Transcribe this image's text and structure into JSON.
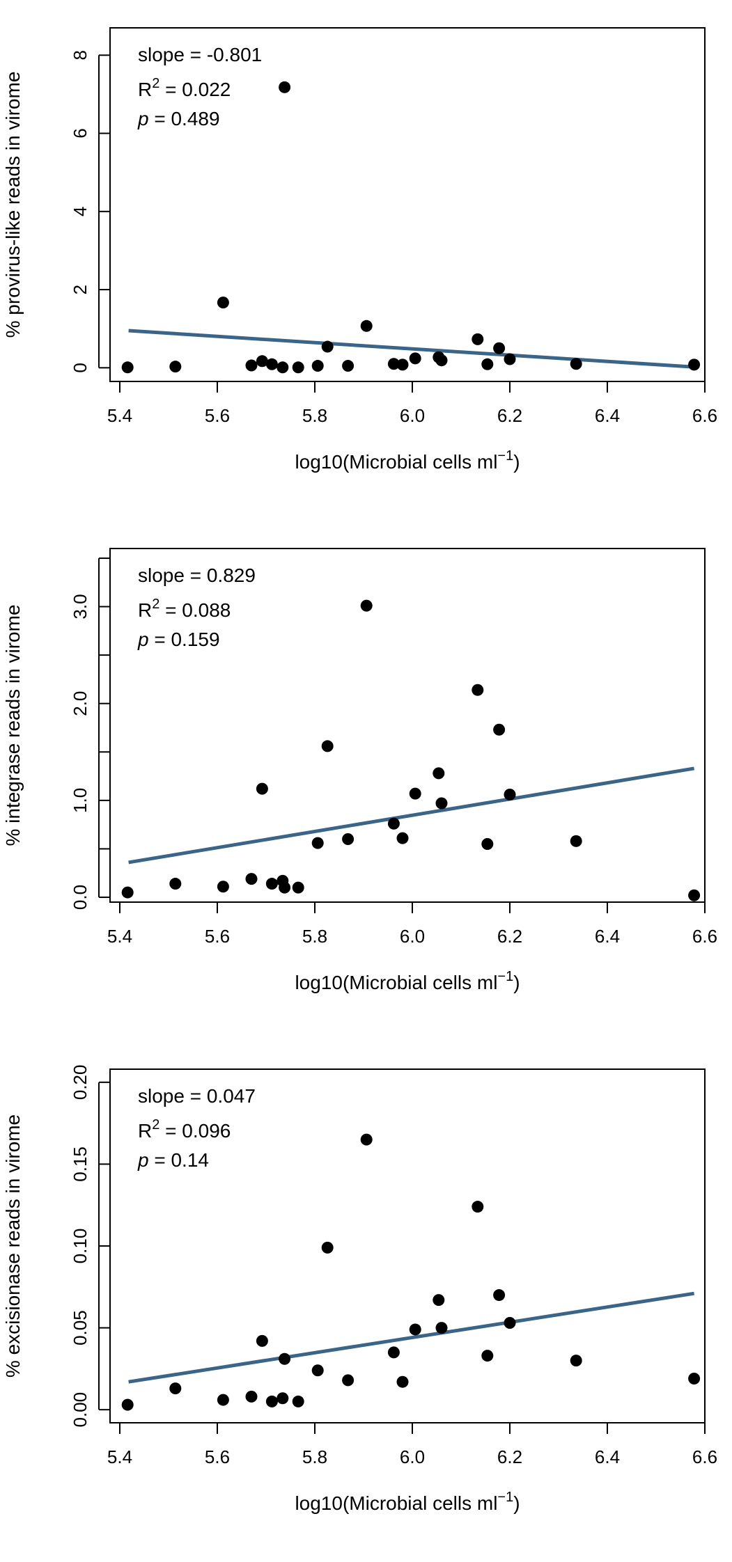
{
  "chart_data": [
    {
      "type": "scatter",
      "stats": {
        "slope_label": "slope =",
        "slope": "-0.801",
        "r2_label": "R",
        "r2_sup": "2",
        "r2": "= 0.022",
        "p_label": "p",
        "p": "= 0.489"
      },
      "xlabel": "log10(Microbial cells ml",
      "xlabel_sup": "−1",
      "xlabel_end": ")",
      "ylabel": "% provirus-like reads in virome",
      "xlim": [
        5.38,
        6.6
      ],
      "ylim": [
        -0.35,
        8.7
      ],
      "xticks": [
        "5.4",
        "5.6",
        "5.8",
        "6.0",
        "6.2",
        "6.4",
        "6.6"
      ],
      "yticks": [
        "0",
        "2",
        "4",
        "6",
        "8"
      ],
      "x": [
        5.416,
        5.514,
        5.612,
        5.67,
        5.692,
        5.712,
        5.734,
        5.766,
        5.806,
        5.826,
        5.868,
        5.906,
        5.962,
        5.98,
        6.006,
        6.054,
        6.06,
        6.134,
        6.154,
        6.178,
        6.2,
        6.336,
        6.578,
        5.738
      ],
      "y": [
        0.01,
        0.03,
        1.67,
        0.06,
        0.17,
        0.09,
        0.01,
        0.01,
        0.05,
        0.54,
        0.05,
        1.07,
        0.1,
        0.08,
        0.24,
        0.27,
        0.19,
        0.73,
        0.09,
        0.5,
        0.22,
        0.1,
        0.08,
        7.18
      ],
      "fit": {
        "x": [
          5.418,
          6.578
        ],
        "y": [
          0.95,
          0.02
        ]
      },
      "point_color": "#000000",
      "line_color": "#3b6489"
    },
    {
      "type": "scatter",
      "stats": {
        "slope_label": "slope =",
        "slope": "0.829",
        "r2_label": "R",
        "r2_sup": "2",
        "r2": "= 0.088",
        "p_label": "p",
        "p": "= 0.159"
      },
      "xlabel": "log10(Microbial cells ml",
      "xlabel_sup": "−1",
      "xlabel_end": ")",
      "ylabel": "% integrase reads in virome",
      "xlim": [
        5.38,
        6.6
      ],
      "ylim": [
        -0.05,
        3.6
      ],
      "xticks": [
        "5.4",
        "5.6",
        "5.8",
        "6.0",
        "6.2",
        "6.4",
        "6.6"
      ],
      "yticks": [
        "0.0",
        "1.0",
        "2.0",
        "3.0"
      ],
      "minor_yticks": [
        0.5,
        1.5,
        2.5,
        3.5
      ],
      "x": [
        5.416,
        5.514,
        5.612,
        5.67,
        5.692,
        5.712,
        5.734,
        5.738,
        5.766,
        5.806,
        5.826,
        5.868,
        5.906,
        5.962,
        5.98,
        6.006,
        6.054,
        6.06,
        6.134,
        6.154,
        6.178,
        6.2,
        6.336,
        6.578
      ],
      "y": [
        0.05,
        0.14,
        0.11,
        0.19,
        1.12,
        0.14,
        0.17,
        0.1,
        0.1,
        0.56,
        1.56,
        0.6,
        3.01,
        0.76,
        0.61,
        1.07,
        1.28,
        0.97,
        2.14,
        0.55,
        1.73,
        1.06,
        0.58,
        0.02
      ],
      "fit": {
        "x": [
          5.418,
          6.578
        ],
        "y": [
          0.36,
          1.33
        ]
      },
      "point_color": "#000000",
      "line_color": "#3b6489"
    },
    {
      "type": "scatter",
      "stats": {
        "slope_label": "slope =",
        "slope": "0.047",
        "r2_label": "R",
        "r2_sup": "2",
        "r2": "= 0.096",
        "p_label": "p",
        "p": "= 0.14"
      },
      "xlabel": "log10(Microbial cells ml",
      "xlabel_sup": "−1",
      "xlabel_end": ")",
      "ylabel": "% excisionase reads in virome",
      "xlim": [
        5.38,
        6.6
      ],
      "ylim": [
        -0.008,
        0.208
      ],
      "xticks": [
        "5.4",
        "5.6",
        "5.8",
        "6.0",
        "6.2",
        "6.4",
        "6.6"
      ],
      "yticks": [
        "0.00",
        "0.05",
        "0.10",
        "0.15",
        "0.20"
      ],
      "x": [
        5.416,
        5.514,
        5.612,
        5.67,
        5.692,
        5.712,
        5.734,
        5.738,
        5.766,
        5.806,
        5.826,
        5.868,
        5.906,
        5.962,
        5.98,
        6.006,
        6.054,
        6.06,
        6.134,
        6.154,
        6.178,
        6.2,
        6.336,
        6.578
      ],
      "y": [
        0.003,
        0.013,
        0.006,
        0.008,
        0.042,
        0.005,
        0.007,
        0.031,
        0.005,
        0.024,
        0.099,
        0.018,
        0.165,
        0.035,
        0.017,
        0.049,
        0.067,
        0.05,
        0.124,
        0.033,
        0.07,
        0.053,
        0.03,
        0.019
      ],
      "fit": {
        "x": [
          5.418,
          6.578
        ],
        "y": [
          0.017,
          0.071
        ]
      },
      "point_color": "#000000",
      "line_color": "#3b6489"
    }
  ]
}
